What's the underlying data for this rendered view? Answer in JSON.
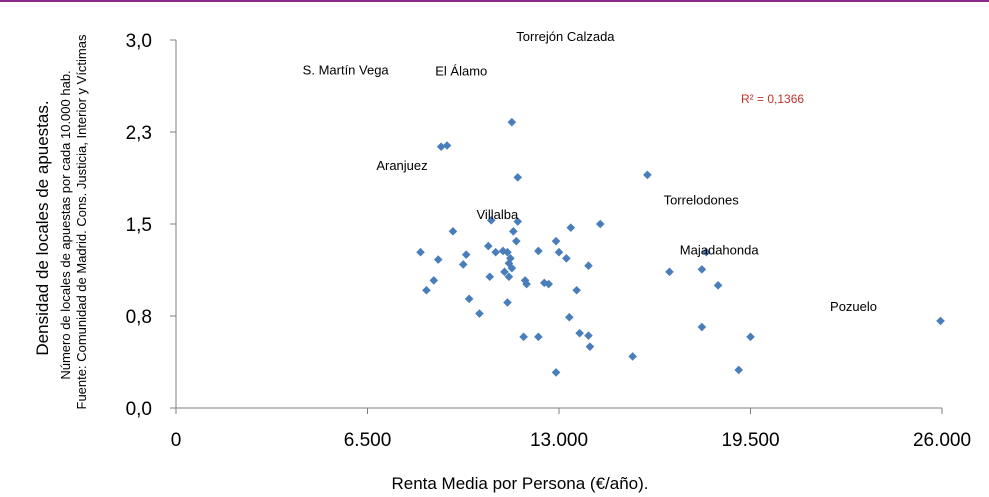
{
  "colors": {
    "accent": "#8a2a8a",
    "marker": "#4a7ebb",
    "r2": "#c0312b",
    "axis": "#7f7f7f"
  },
  "chart_data": {
    "type": "scatter",
    "xlabel": "Renta Media por Persona (€/año).",
    "ylabel": "Densidad de locales de apuestas.",
    "ylabel_sub": "Número de  locales de apuestas por cada 10.000 hab.",
    "source": "Fuente:  Comunidad de Madrid. Cons.  Justicia, Interior y Víctimas",
    "r2": "R² = 0,1366",
    "xlim": [
      0,
      26000
    ],
    "ylim": [
      0,
      3.0
    ],
    "x_ticks": [
      {
        "value": 0,
        "label": "0"
      },
      {
        "value": 6500,
        "label": "6.500"
      },
      {
        "value": 13000,
        "label": "13.000"
      },
      {
        "value": 19500,
        "label": "19.500"
      },
      {
        "value": 26000,
        "label": "26.000"
      }
    ],
    "y_ticks": [
      {
        "value": 0,
        "label": "0,0"
      },
      {
        "value": 0.75,
        "label": "0,8"
      },
      {
        "value": 1.5,
        "label": "1,5"
      },
      {
        "value": 2.25,
        "label": "2,3"
      },
      {
        "value": 3.0,
        "label": "3,0"
      }
    ],
    "annotations": [
      {
        "text": "Torrejón Calzada",
        "x": 11550,
        "y": 2.99
      },
      {
        "text": "S. Martín Vega",
        "x": 4300,
        "y": 2.72
      },
      {
        "text": "El Álamo",
        "x": 8800,
        "y": 2.71
      },
      {
        "text": "Aranjuez",
        "x": 6800,
        "y": 1.94
      },
      {
        "text": "Villalba",
        "x": 10200,
        "y": 1.54
      },
      {
        "text": "Torrelodones",
        "x": 16550,
        "y": 1.66
      },
      {
        "text": "Majadahonda",
        "x": 17100,
        "y": 1.25
      },
      {
        "text": "Pozuelo",
        "x": 22200,
        "y": 0.79
      }
    ],
    "points": [
      {
        "x": 9000,
        "y": 2.13
      },
      {
        "x": 9200,
        "y": 2.14
      },
      {
        "x": 11400,
        "y": 2.33
      },
      {
        "x": 11600,
        "y": 1.88
      },
      {
        "x": 16000,
        "y": 1.9
      },
      {
        "x": 9400,
        "y": 1.44
      },
      {
        "x": 10700,
        "y": 1.53
      },
      {
        "x": 11600,
        "y": 1.52
      },
      {
        "x": 11450,
        "y": 1.44
      },
      {
        "x": 11550,
        "y": 1.36
      },
      {
        "x": 13400,
        "y": 1.47
      },
      {
        "x": 14400,
        "y": 1.5
      },
      {
        "x": 12900,
        "y": 1.36
      },
      {
        "x": 10600,
        "y": 1.32
      },
      {
        "x": 10850,
        "y": 1.27
      },
      {
        "x": 11100,
        "y": 1.28
      },
      {
        "x": 11250,
        "y": 1.27
      },
      {
        "x": 11350,
        "y": 1.22
      },
      {
        "x": 11300,
        "y": 1.18
      },
      {
        "x": 11400,
        "y": 1.14
      },
      {
        "x": 11150,
        "y": 1.11
      },
      {
        "x": 11300,
        "y": 1.07
      },
      {
        "x": 10650,
        "y": 1.07
      },
      {
        "x": 8300,
        "y": 1.27
      },
      {
        "x": 8900,
        "y": 1.21
      },
      {
        "x": 9850,
        "y": 1.25
      },
      {
        "x": 9750,
        "y": 1.17
      },
      {
        "x": 12300,
        "y": 1.28
      },
      {
        "x": 13000,
        "y": 1.27
      },
      {
        "x": 13250,
        "y": 1.22
      },
      {
        "x": 14000,
        "y": 1.16
      },
      {
        "x": 11850,
        "y": 1.04
      },
      {
        "x": 11900,
        "y": 1.01
      },
      {
        "x": 12500,
        "y": 1.02
      },
      {
        "x": 12650,
        "y": 1.01
      },
      {
        "x": 13600,
        "y": 0.96
      },
      {
        "x": 8750,
        "y": 1.04
      },
      {
        "x": 8500,
        "y": 0.96
      },
      {
        "x": 9950,
        "y": 0.89
      },
      {
        "x": 11250,
        "y": 0.86
      },
      {
        "x": 10300,
        "y": 0.77
      },
      {
        "x": 13350,
        "y": 0.74
      },
      {
        "x": 13700,
        "y": 0.61
      },
      {
        "x": 14000,
        "y": 0.59
      },
      {
        "x": 14050,
        "y": 0.5
      },
      {
        "x": 12300,
        "y": 0.58
      },
      {
        "x": 11800,
        "y": 0.58
      },
      {
        "x": 12900,
        "y": 0.29
      },
      {
        "x": 15500,
        "y": 0.42
      },
      {
        "x": 16750,
        "y": 1.11
      },
      {
        "x": 17850,
        "y": 1.13
      },
      {
        "x": 18000,
        "y": 1.27
      },
      {
        "x": 18400,
        "y": 1.0
      },
      {
        "x": 17850,
        "y": 0.66
      },
      {
        "x": 19100,
        "y": 0.31
      },
      {
        "x": 19500,
        "y": 0.58
      },
      {
        "x": 25950,
        "y": 0.71
      }
    ]
  }
}
